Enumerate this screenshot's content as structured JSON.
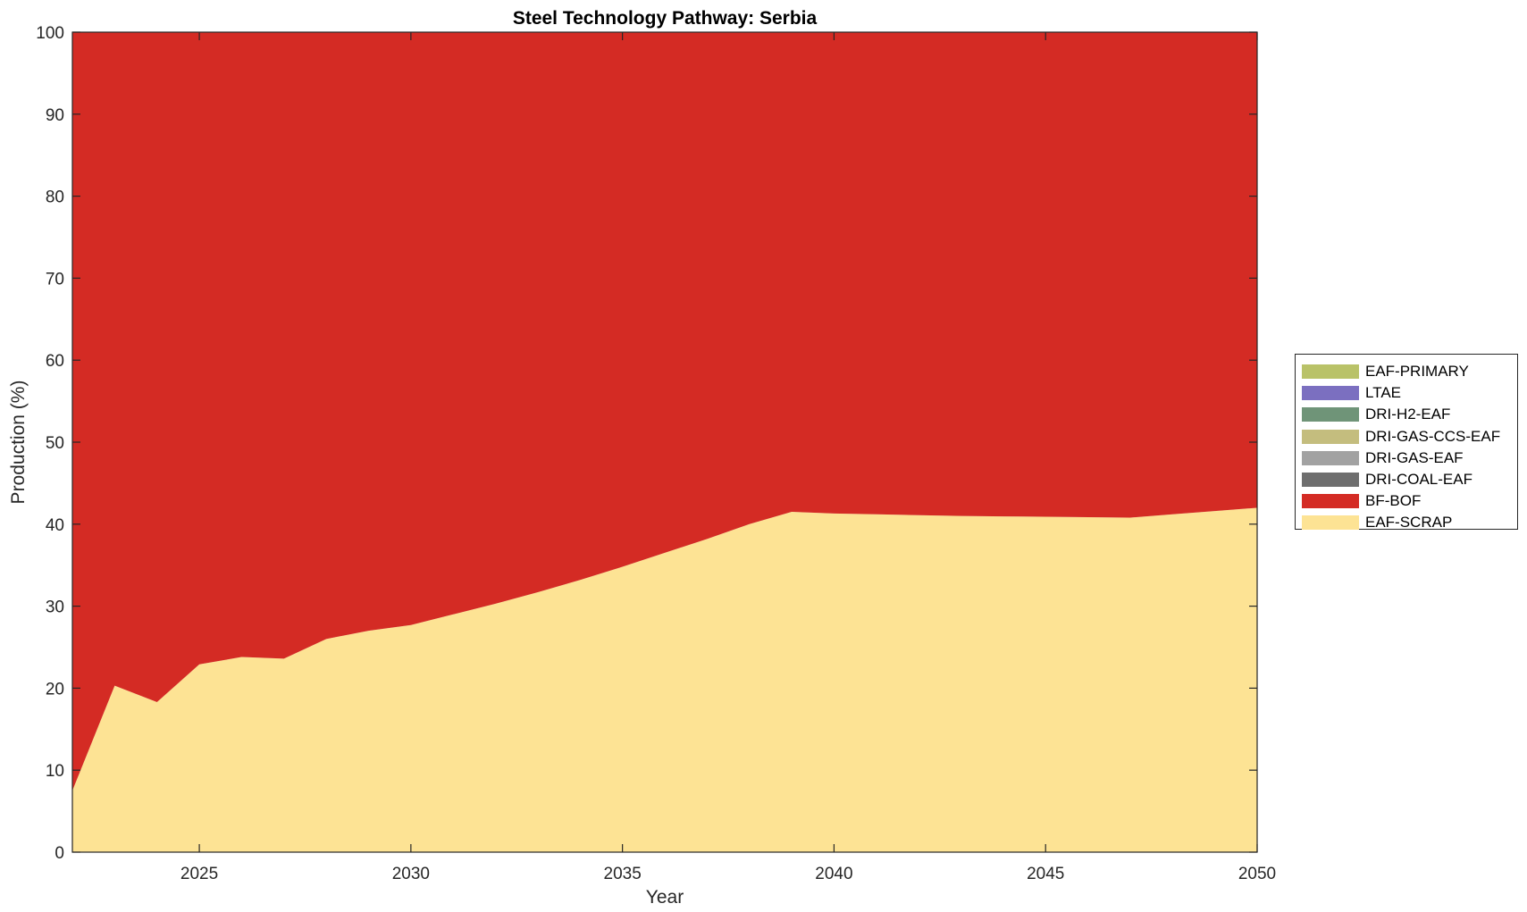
{
  "chart_data": {
    "type": "area",
    "title": "Steel Technology Pathway: Serbia",
    "xlabel": "Year",
    "ylabel": "Production (%)",
    "xlim": [
      2022,
      2050
    ],
    "ylim": [
      0,
      100
    ],
    "xticks": [
      2025,
      2030,
      2035,
      2040,
      2045,
      2050
    ],
    "yticks": [
      0,
      10,
      20,
      30,
      40,
      50,
      60,
      70,
      80,
      90,
      100
    ],
    "stacked": true,
    "grid": false,
    "legend_position": "right",
    "x": [
      2022,
      2023,
      2024,
      2025,
      2026,
      2027,
      2028,
      2029,
      2030,
      2031,
      2032,
      2033,
      2034,
      2035,
      2036,
      2037,
      2038,
      2039,
      2040,
      2041,
      2042,
      2043,
      2044,
      2045,
      2046,
      2047,
      2048,
      2049,
      2050
    ],
    "series": [
      {
        "name": "EAF-SCRAP",
        "color": "#fde394",
        "values": [
          7.5,
          20.3,
          18.3,
          22.9,
          23.8,
          23.6,
          26.0,
          27.0,
          27.7,
          29.0,
          30.3,
          31.7,
          33.2,
          34.8,
          36.5,
          38.2,
          40.0,
          41.5,
          41.3,
          41.2,
          41.1,
          41.0,
          40.95,
          40.9,
          40.85,
          40.8,
          41.2,
          41.6,
          42.0
        ]
      },
      {
        "name": "BF-BOF",
        "color": "#d42b24",
        "values": [
          92.5,
          79.7,
          81.7,
          77.1,
          76.2,
          76.4,
          74.0,
          73.0,
          72.3,
          71.0,
          69.7,
          68.3,
          66.8,
          65.2,
          63.5,
          61.8,
          60.0,
          58.5,
          58.7,
          58.8,
          58.9,
          59.0,
          59.05,
          59.1,
          59.15,
          59.2,
          58.8,
          58.4,
          58.0
        ]
      },
      {
        "name": "DRI-COAL-EAF",
        "color": "#6e6e6e",
        "values": [
          0,
          0,
          0,
          0,
          0,
          0,
          0,
          0,
          0,
          0,
          0,
          0,
          0,
          0,
          0,
          0,
          0,
          0,
          0,
          0,
          0,
          0,
          0,
          0,
          0,
          0,
          0,
          0,
          0
        ]
      },
      {
        "name": "DRI-GAS-EAF",
        "color": "#a2a2a2",
        "values": [
          0,
          0,
          0,
          0,
          0,
          0,
          0,
          0,
          0,
          0,
          0,
          0,
          0,
          0,
          0,
          0,
          0,
          0,
          0,
          0,
          0,
          0,
          0,
          0,
          0,
          0,
          0,
          0,
          0
        ]
      },
      {
        "name": "DRI-GAS-CCS-EAF",
        "color": "#c4bd7e",
        "values": [
          0,
          0,
          0,
          0,
          0,
          0,
          0,
          0,
          0,
          0,
          0,
          0,
          0,
          0,
          0,
          0,
          0,
          0,
          0,
          0,
          0,
          0,
          0,
          0,
          0,
          0,
          0,
          0,
          0
        ]
      },
      {
        "name": "DRI-H2-EAF",
        "color": "#6f9478",
        "values": [
          0,
          0,
          0,
          0,
          0,
          0,
          0,
          0,
          0,
          0,
          0,
          0,
          0,
          0,
          0,
          0,
          0,
          0,
          0,
          0,
          0,
          0,
          0,
          0,
          0,
          0,
          0,
          0,
          0
        ]
      },
      {
        "name": "LTAE",
        "color": "#7b6fc0",
        "values": [
          0,
          0,
          0,
          0,
          0,
          0,
          0,
          0,
          0,
          0,
          0,
          0,
          0,
          0,
          0,
          0,
          0,
          0,
          0,
          0,
          0,
          0,
          0,
          0,
          0,
          0,
          0,
          0,
          0
        ]
      },
      {
        "name": "EAF-PRIMARY",
        "color": "#b9c268",
        "values": [
          0,
          0,
          0,
          0,
          0,
          0,
          0,
          0,
          0,
          0,
          0,
          0,
          0,
          0,
          0,
          0,
          0,
          0,
          0,
          0,
          0,
          0,
          0,
          0,
          0,
          0,
          0,
          0,
          0
        ]
      }
    ],
    "legend_order": [
      "EAF-PRIMARY",
      "LTAE",
      "DRI-H2-EAF",
      "DRI-GAS-CCS-EAF",
      "DRI-GAS-EAF",
      "DRI-COAL-EAF",
      "BF-BOF",
      "EAF-SCRAP"
    ]
  }
}
